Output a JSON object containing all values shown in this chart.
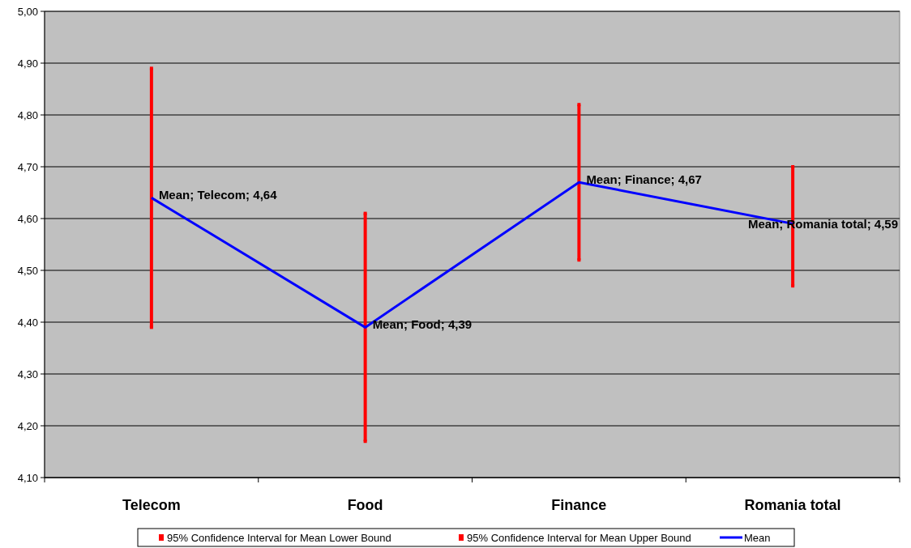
{
  "chart_data": {
    "type": "line",
    "categories": [
      "Telecom",
      "Food",
      "Finance",
      "Romania total"
    ],
    "series": [
      {
        "name": "95% Confidence Interval for Mean Lower Bound",
        "type": "scatter",
        "marker": "square",
        "color": "#ff0000",
        "values": [
          4.39,
          4.17,
          4.52,
          4.47
        ]
      },
      {
        "name": "95% Confidence Interval for Mean Upper Bound",
        "type": "scatter",
        "marker": "square",
        "color": "#ff0000",
        "values": [
          4.89,
          4.61,
          4.82,
          4.7
        ]
      },
      {
        "name": "Mean",
        "type": "line",
        "marker": "none",
        "color": "#0000ff",
        "values": [
          4.64,
          4.39,
          4.67,
          4.59
        ]
      }
    ],
    "ylim": [
      4.1,
      5.0
    ],
    "yticks": [
      {
        "value": 4.1,
        "label": "4,10"
      },
      {
        "value": 4.2,
        "label": "4,20"
      },
      {
        "value": 4.3,
        "label": "4,30"
      },
      {
        "value": 4.4,
        "label": "4,40"
      },
      {
        "value": 4.5,
        "label": "4,50"
      },
      {
        "value": 4.6,
        "label": "4,60"
      },
      {
        "value": 4.7,
        "label": "4,70"
      },
      {
        "value": 4.8,
        "label": "4,80"
      },
      {
        "value": 4.9,
        "label": "4,90"
      },
      {
        "value": 5.0,
        "label": "5,00"
      }
    ],
    "grid": "y",
    "legend": "bottom",
    "annotations": [
      {
        "text": "Mean; Telecom; 4,64",
        "x": "Telecom",
        "y": 4.64
      },
      {
        "text": "Mean; Food; 4,39",
        "x": "Food",
        "y": 4.39
      },
      {
        "text": "Mean; Finance; 4,67",
        "x": "Finance",
        "y": 4.67
      },
      {
        "text": "Mean; Romania total; 4,59",
        "x": "Romania total",
        "y": 4.59
      }
    ]
  }
}
